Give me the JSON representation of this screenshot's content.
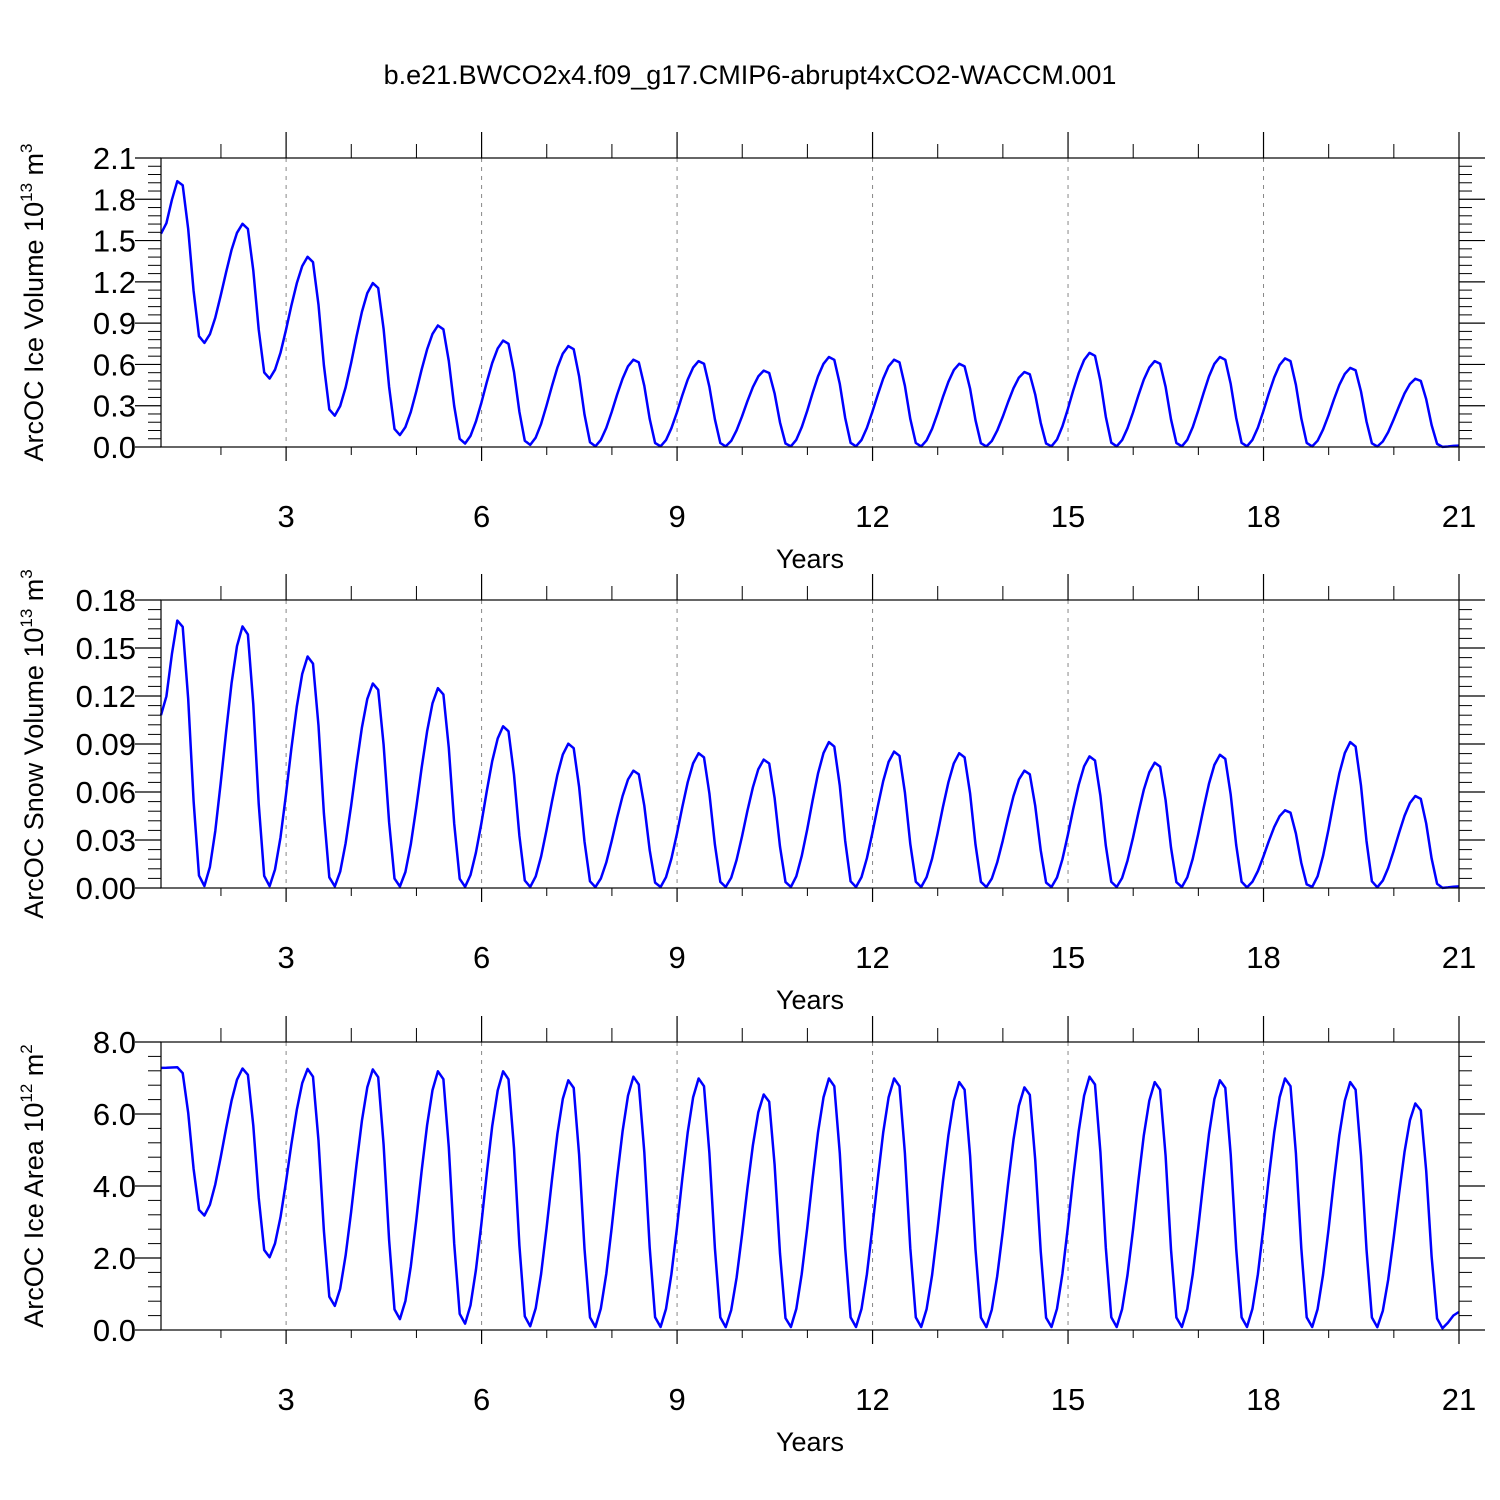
{
  "figure": {
    "title": "b.e21.BWCO2x4.f09_g17.CMIP6-abrupt4xCO2-WACCM.001"
  },
  "chart_data": [
    {
      "type": "line",
      "title": "b.e21.BWCO2x4.f09_g17.CMIP6-abrupt4xCO2-WACCM.001",
      "xlabel": "Years",
      "ylabel": {
        "main": "ArcOC Ice Volume 10",
        "exp": "13",
        "unit": " m",
        "unit_exp": "3"
      },
      "xlim": [
        1.08,
        21.0
      ],
      "ylim": [
        0,
        2.1
      ],
      "xticks": [
        3,
        6,
        9,
        12,
        15,
        18,
        21
      ],
      "yticks": [
        0.0,
        0.3,
        0.6,
        0.9,
        1.2,
        1.5,
        1.8,
        2.1
      ],
      "ytick_decimals": 1,
      "grid": "vertical dashed at major x ticks",
      "series": [
        {
          "name": "ArcOC Ice Volume",
          "color": "#0000ff",
          "peaks": [
            1.95,
            1.63,
            1.39,
            1.2,
            0.89,
            0.78,
            0.74,
            0.64,
            0.63,
            0.56,
            0.66,
            0.64,
            0.61,
            0.55,
            0.69,
            0.63,
            0.66,
            0.65,
            0.58,
            0.5
          ],
          "troughs": [
            0.75,
            0.49,
            0.22,
            0.08,
            0.02,
            0.01,
            0.0,
            0.0,
            0.0,
            0.0,
            0.0,
            0.0,
            0.0,
            0.0,
            0.0,
            0.0,
            0.0,
            0.0,
            0.0,
            0.0
          ],
          "start": 1.55,
          "end": 0.01
        }
      ]
    },
    {
      "type": "line",
      "xlabel": "Years",
      "ylabel": {
        "main": "ArcOC Snow Volume 10",
        "exp": "13",
        "unit": " m",
        "unit_exp": "3"
      },
      "xlim": [
        1.08,
        21.0
      ],
      "ylim": [
        0,
        0.18
      ],
      "xticks": [
        3,
        6,
        9,
        12,
        15,
        18,
        21
      ],
      "yticks": [
        0.0,
        0.03,
        0.06,
        0.09,
        0.12,
        0.15,
        0.18
      ],
      "ytick_decimals": 2,
      "grid": "vertical dashed at major x ticks",
      "series": [
        {
          "name": "ArcOC Snow Volume",
          "color": "#0000ff",
          "peaks": [
            0.17,
            0.165,
            0.146,
            0.129,
            0.126,
            0.102,
            0.091,
            0.074,
            0.085,
            0.081,
            0.092,
            0.086,
            0.085,
            0.074,
            0.083,
            0.079,
            0.084,
            0.049,
            0.092,
            0.058
          ],
          "troughs": [
            0.0,
            0.0,
            0.0,
            0.0,
            0.0,
            0.0,
            0.0,
            0.0,
            0.0,
            0.0,
            0.0,
            0.0,
            0.0,
            0.0,
            0.0,
            0.0,
            0.0,
            0.0,
            0.0,
            0.0
          ],
          "start": 0.108,
          "end": 0.001
        }
      ]
    },
    {
      "type": "line",
      "xlabel": "Years",
      "ylabel": {
        "main": "ArcOC Ice Area 10",
        "exp": "12",
        "unit": " m",
        "unit_exp": "2"
      },
      "xlim": [
        1.08,
        21.0
      ],
      "ylim": [
        0,
        8.0
      ],
      "xticks": [
        3,
        6,
        9,
        12,
        15,
        18,
        21
      ],
      "yticks": [
        0.0,
        2.0,
        4.0,
        6.0,
        8.0
      ],
      "ytick_decimals": 1,
      "grid": "vertical dashed at major x ticks",
      "series": [
        {
          "name": "ArcOC Ice Area",
          "color": "#0000ff",
          "peaks": [
            7.3,
            7.3,
            7.3,
            7.3,
            7.25,
            7.25,
            7.0,
            7.1,
            7.05,
            6.6,
            7.05,
            7.05,
            6.95,
            6.8,
            7.1,
            6.95,
            7.0,
            7.05,
            6.95,
            6.35
          ],
          "troughs": [
            3.15,
            1.98,
            0.62,
            0.25,
            0.12,
            0.05,
            0.03,
            0.03,
            0.03,
            0.03,
            0.03,
            0.03,
            0.03,
            0.03,
            0.03,
            0.03,
            0.03,
            0.03,
            0.03,
            0.03
          ],
          "start": 7.28,
          "end": 0.5
        }
      ]
    }
  ]
}
